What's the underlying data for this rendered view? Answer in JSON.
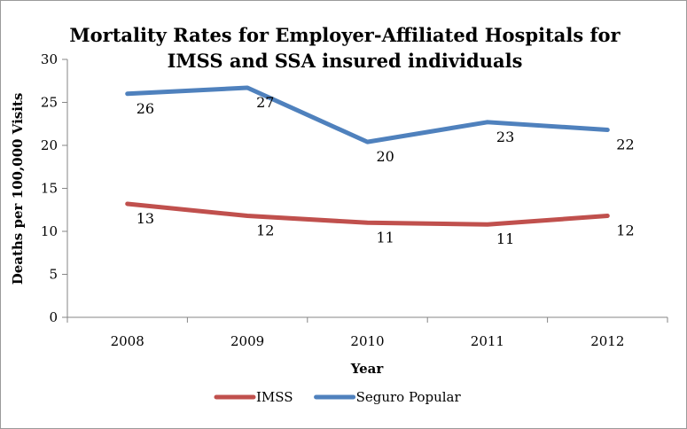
{
  "chart_data": {
    "type": "line",
    "title_line1": "Mortality Rates for Employer-Affiliated Hospitals for",
    "title_line2": "IMSS and SSA insured individuals",
    "xlabel": "Year",
    "ylabel": "Deaths per 100,000 Visits",
    "categories": [
      "2008",
      "2009",
      "2010",
      "2011",
      "2012"
    ],
    "ylim": [
      0,
      30
    ],
    "yticks": [
      0,
      5,
      10,
      15,
      20,
      25,
      30
    ],
    "grid": false,
    "legend_position": "bottom",
    "series": [
      {
        "name": "IMSS",
        "color": "#c0504d",
        "values": [
          13.2,
          11.8,
          11.0,
          10.8,
          11.8
        ],
        "labels": [
          "13",
          "12",
          "11",
          "11",
          "12"
        ]
      },
      {
        "name": "Seguro Popular",
        "color": "#4f81bd",
        "values": [
          26.0,
          26.7,
          20.4,
          22.7,
          21.8
        ],
        "labels": [
          "26",
          "27",
          "20",
          "23",
          "22"
        ]
      }
    ]
  }
}
